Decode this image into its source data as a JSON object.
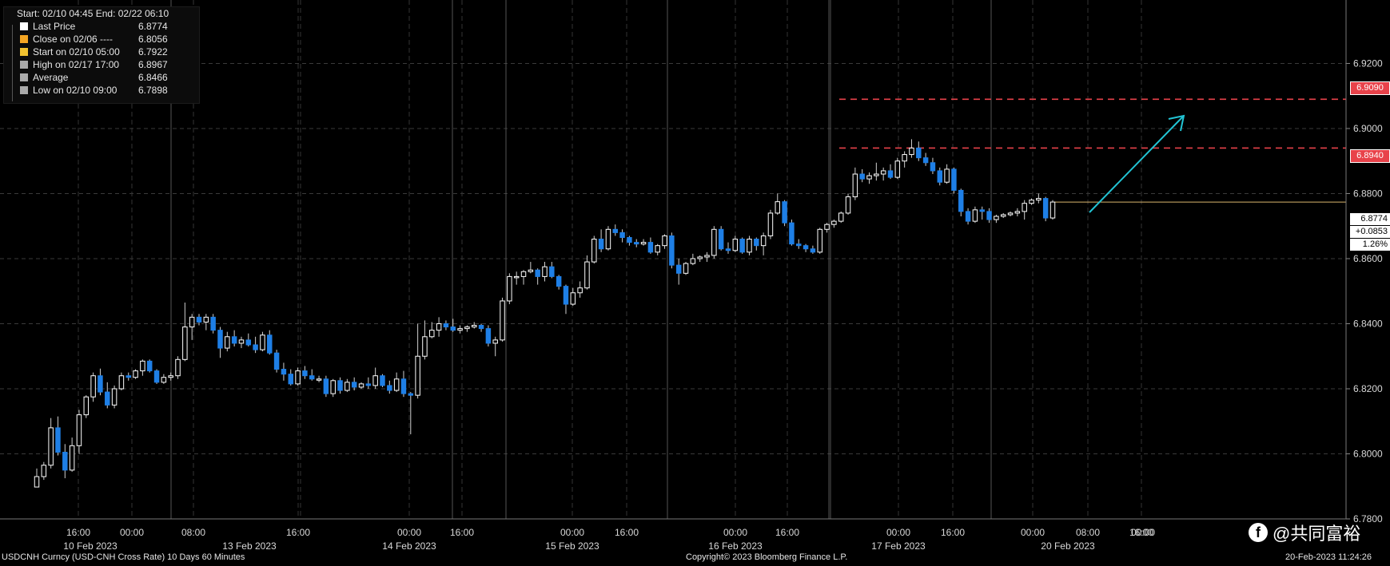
{
  "legend": {
    "header": "Start: 02/10 04:45 End: 02/22 06:10",
    "rows": [
      {
        "label": "Last Price",
        "value": "6.8774",
        "color": "#ffffff"
      },
      {
        "label": "Close on 02/06 ----",
        "value": "6.8056",
        "color": "#f5a623"
      },
      {
        "label": "Start on 02/10 05:00",
        "value": "6.7922",
        "color": "#f2c230"
      },
      {
        "label": "High on 02/17 17:00",
        "value": "6.8967",
        "color": "#aaaaaa"
      },
      {
        "label": "Average",
        "value": "6.8466",
        "color": "#aaaaaa"
      },
      {
        "label": "Low on 02/10 09:00",
        "value": "6.7898",
        "color": "#aaaaaa"
      }
    ]
  },
  "price_boxes": {
    "level_upper": "6.9090",
    "level_lower": "6.8940",
    "last_price": "6.8774",
    "change": "+0.0853",
    "change_pct": "1.26%"
  },
  "footer": {
    "left": "USDCNH Curncy (USD-CNH Cross Rate) 10 Days 60 Minutes",
    "center": "Copyright© 2023 Bloomberg Finance L.P.",
    "right": "20-Feb-2023 11:24:26"
  },
  "watermark": "@共同富裕",
  "colors": {
    "background": "#000000",
    "up_candle": "#ffffff",
    "down_candle": "#1e7fe6",
    "level_line": "#e8424a",
    "arrow": "#22c4d4",
    "last_line": "#d9b56e"
  },
  "chart_data": {
    "type": "candlestick",
    "y_axis": {
      "range": [
        6.78,
        6.9395
      ],
      "ticks": [
        6.78,
        6.8,
        6.82,
        6.84,
        6.86,
        6.88,
        6.9,
        6.92
      ],
      "tick_labels": [
        "6.7800",
        "6.8000",
        "6.8200",
        "6.8400",
        "6.8600",
        "6.8800",
        "6.9000",
        "6.9200"
      ]
    },
    "x_tick_labels": [
      "16:00",
      "00:00",
      "08:00",
      "16:00",
      "00:00",
      "16:00",
      "00:00",
      "16:00",
      "00:00",
      "16:00",
      "00:00",
      "16:00",
      "00:00",
      "08:00",
      "16:00",
      "00:00"
    ],
    "x_date_labels": [
      "10 Feb 2023",
      "13 Feb 2023",
      "14 Feb 2023",
      "15 Feb 2023",
      "16 Feb 2023",
      "17 Feb 2023",
      "20 Feb 2023"
    ],
    "horizontal_levels": [
      6.909,
      6.894
    ],
    "last_price_line": 6.8774,
    "candles": [
      [
        6.7898,
        6.7955,
        6.7898,
        6.793
      ],
      [
        6.793,
        6.7975,
        6.792,
        6.7965
      ],
      [
        6.7965,
        6.811,
        6.7955,
        6.808
      ],
      [
        6.808,
        6.8115,
        6.7995,
        6.8005
      ],
      [
        6.8005,
        6.803,
        6.7925,
        6.795
      ],
      [
        6.795,
        6.805,
        6.7945,
        6.8025
      ],
      [
        6.8025,
        6.8135,
        6.8,
        6.812
      ],
      [
        6.812,
        6.818,
        6.811,
        6.8175
      ],
      [
        6.8175,
        6.825,
        6.816,
        6.824
      ],
      [
        6.824,
        6.8262,
        6.818,
        6.819
      ],
      [
        6.819,
        6.822,
        6.814,
        6.815
      ],
      [
        6.815,
        6.821,
        6.814,
        6.82
      ],
      [
        6.82,
        6.825,
        6.8195,
        6.824
      ],
      [
        6.824,
        6.825,
        6.8225,
        6.8235
      ],
      [
        6.8235,
        6.826,
        6.823,
        6.8255
      ],
      [
        6.8255,
        6.829,
        6.824,
        6.8285
      ],
      [
        6.8285,
        6.829,
        6.825,
        6.8255
      ],
      [
        6.8255,
        6.826,
        6.8215,
        6.822
      ],
      [
        6.822,
        6.8245,
        6.8215,
        6.8235
      ],
      [
        6.8235,
        6.825,
        6.8225,
        6.824
      ],
      [
        6.824,
        6.83,
        6.823,
        6.829
      ],
      [
        6.829,
        6.8465,
        6.8285,
        6.839
      ],
      [
        6.839,
        6.843,
        6.835,
        6.842
      ],
      [
        6.842,
        6.843,
        6.8395,
        6.8405
      ],
      [
        6.8405,
        6.843,
        6.838,
        6.842
      ],
      [
        6.842,
        6.843,
        6.837,
        6.838
      ],
      [
        6.838,
        6.839,
        6.8295,
        6.8325
      ],
      [
        6.8325,
        6.8375,
        6.8315,
        6.836
      ],
      [
        6.836,
        6.838,
        6.833,
        6.834
      ],
      [
        6.834,
        6.836,
        6.8325,
        6.835
      ],
      [
        6.835,
        6.837,
        6.833,
        6.8335
      ],
      [
        6.8335,
        6.836,
        6.831,
        6.832
      ],
      [
        6.832,
        6.8375,
        6.8315,
        6.8365
      ],
      [
        6.8365,
        6.838,
        6.8305,
        6.831
      ],
      [
        6.831,
        6.832,
        6.825,
        6.826
      ],
      [
        6.826,
        6.828,
        6.8225,
        6.8245
      ],
      [
        6.8245,
        6.826,
        6.821,
        6.8215
      ],
      [
        6.8215,
        6.8265,
        6.821,
        6.8255
      ],
      [
        6.8255,
        6.827,
        6.823,
        6.824
      ],
      [
        6.824,
        6.826,
        6.8225,
        6.823
      ],
      [
        6.823,
        6.824,
        6.822,
        6.823
      ],
      [
        6.823,
        6.824,
        6.8175,
        6.8185
      ],
      [
        6.8185,
        6.823,
        6.8175,
        6.8225
      ],
      [
        6.8225,
        6.8235,
        6.8185,
        6.8195
      ],
      [
        6.8195,
        6.823,
        6.819,
        6.822
      ],
      [
        6.822,
        6.8235,
        6.8195,
        6.8205
      ],
      [
        6.8205,
        6.822,
        6.82,
        6.8215
      ],
      [
        6.8215,
        6.8235,
        6.82,
        6.821
      ],
      [
        6.821,
        6.8265,
        6.82,
        6.824
      ],
      [
        6.824,
        6.8245,
        6.8205,
        6.821
      ],
      [
        6.821,
        6.8225,
        6.8185,
        6.8195
      ],
      [
        6.8195,
        6.825,
        6.819,
        6.823
      ],
      [
        6.823,
        6.8255,
        6.8175,
        6.8185
      ],
      [
        6.8185,
        6.819,
        6.806,
        6.818
      ],
      [
        6.818,
        6.84,
        6.817,
        6.83
      ],
      [
        6.83,
        6.841,
        6.829,
        6.836
      ],
      [
        6.836,
        6.8405,
        6.8355,
        6.838
      ],
      [
        6.838,
        6.842,
        6.836,
        6.84
      ],
      [
        6.84,
        6.841,
        6.838,
        6.839
      ],
      [
        6.839,
        6.8415,
        6.8375,
        6.838
      ],
      [
        6.838,
        6.8395,
        6.837,
        6.8385
      ],
      [
        6.8385,
        6.8395,
        6.8375,
        6.839
      ],
      [
        6.839,
        6.8405,
        6.8385,
        6.8395
      ],
      [
        6.8395,
        6.84,
        6.8375,
        6.8385
      ],
      [
        6.8385,
        6.8395,
        6.833,
        6.834
      ],
      [
        6.834,
        6.836,
        6.83,
        6.835
      ],
      [
        6.835,
        6.848,
        6.8345,
        6.847
      ],
      [
        6.847,
        6.8555,
        6.846,
        6.8545
      ],
      [
        6.8545,
        6.856,
        6.852,
        6.8545
      ],
      [
        6.8545,
        6.8565,
        6.852,
        6.856
      ],
      [
        6.856,
        6.859,
        6.8555,
        6.8565
      ],
      [
        6.8565,
        6.857,
        6.852,
        6.8545
      ],
      [
        6.8545,
        6.859,
        6.853,
        6.8575
      ],
      [
        6.8575,
        6.859,
        6.854,
        6.8545
      ],
      [
        6.8545,
        6.855,
        6.8505,
        6.8515
      ],
      [
        6.8515,
        6.852,
        6.843,
        6.846
      ],
      [
        6.846,
        6.851,
        6.8455,
        6.8495
      ],
      [
        6.8495,
        6.853,
        6.848,
        6.851
      ],
      [
        6.851,
        6.861,
        6.8505,
        6.859
      ],
      [
        6.859,
        6.867,
        6.8585,
        6.866
      ],
      [
        6.866,
        6.869,
        6.862,
        6.863
      ],
      [
        6.863,
        6.87,
        6.8625,
        6.869
      ],
      [
        6.869,
        6.8705,
        6.867,
        6.868
      ],
      [
        6.868,
        6.869,
        6.865,
        6.8665
      ],
      [
        6.8665,
        6.867,
        6.864,
        6.865
      ],
      [
        6.865,
        6.866,
        6.8635,
        6.8645
      ],
      [
        6.8645,
        6.866,
        6.864,
        6.865
      ],
      [
        6.865,
        6.8665,
        6.8615,
        6.862
      ],
      [
        6.862,
        6.8645,
        6.861,
        6.864
      ],
      [
        6.864,
        6.8675,
        6.863,
        6.867
      ],
      [
        6.867,
        6.868,
        6.857,
        6.858
      ],
      [
        6.858,
        6.86,
        6.852,
        6.8555
      ],
      [
        6.8555,
        6.859,
        6.855,
        6.8585
      ],
      [
        6.8585,
        6.8615,
        6.858,
        6.86
      ],
      [
        6.86,
        6.861,
        6.859,
        6.8605
      ],
      [
        6.8605,
        6.862,
        6.859,
        6.861
      ],
      [
        6.861,
        6.87,
        6.86,
        6.869
      ],
      [
        6.869,
        6.87,
        6.8625,
        6.863
      ],
      [
        6.863,
        6.865,
        6.8615,
        6.8625
      ],
      [
        6.8625,
        6.867,
        6.862,
        6.866
      ],
      [
        6.866,
        6.8665,
        6.8615,
        6.862
      ],
      [
        6.862,
        6.867,
        6.861,
        6.866
      ],
      [
        6.866,
        6.8665,
        6.8625,
        6.864
      ],
      [
        6.864,
        6.868,
        6.861,
        6.867
      ],
      [
        6.867,
        6.875,
        6.866,
        6.874
      ],
      [
        6.874,
        6.88,
        6.8735,
        6.8775
      ],
      [
        6.8775,
        6.878,
        6.87,
        6.871
      ],
      [
        6.871,
        6.872,
        6.864,
        6.8645
      ],
      [
        6.8645,
        6.866,
        6.863,
        6.864
      ],
      [
        6.864,
        6.8645,
        6.862,
        6.863
      ],
      [
        6.863,
        6.864,
        6.8615,
        6.862
      ],
      [
        6.862,
        6.8695,
        6.8615,
        6.869
      ],
      [
        6.869,
        6.871,
        6.868,
        6.8705
      ],
      [
        6.8705,
        6.872,
        6.8695,
        6.8715
      ],
      [
        6.8715,
        6.8745,
        6.871,
        6.874
      ],
      [
        6.874,
        6.88,
        6.8735,
        6.879
      ],
      [
        6.879,
        6.888,
        6.878,
        6.886
      ],
      [
        6.886,
        6.8875,
        6.8835,
        6.8845
      ],
      [
        6.8845,
        6.8865,
        6.883,
        6.8855
      ],
      [
        6.8855,
        6.8895,
        6.884,
        6.886
      ],
      [
        6.886,
        6.888,
        6.884,
        6.887
      ],
      [
        6.887,
        6.889,
        6.8845,
        6.885
      ],
      [
        6.885,
        6.891,
        6.8845,
        6.89
      ],
      [
        6.89,
        6.893,
        6.888,
        6.892
      ],
      [
        6.892,
        6.8967,
        6.891,
        6.894
      ],
      [
        6.894,
        6.896,
        6.89,
        6.891
      ],
      [
        6.891,
        6.8925,
        6.8885,
        6.8895
      ],
      [
        6.8895,
        6.891,
        6.886,
        6.887
      ],
      [
        6.887,
        6.888,
        6.8825,
        6.8835
      ],
      [
        6.8835,
        6.889,
        6.883,
        6.8875
      ],
      [
        6.8875,
        6.888,
        6.88,
        6.881
      ],
      [
        6.881,
        6.8815,
        6.873,
        6.8745
      ],
      [
        6.8745,
        6.8755,
        6.8705,
        6.8715
      ],
      [
        6.8715,
        6.876,
        6.871,
        6.875
      ],
      [
        6.875,
        6.876,
        6.872,
        6.8745
      ],
      [
        6.8745,
        6.8755,
        6.871,
        6.872
      ],
      [
        6.872,
        6.8735,
        6.871,
        6.873
      ],
      [
        6.873,
        6.874,
        6.8725,
        6.8735
      ],
      [
        6.8735,
        6.8745,
        6.873,
        6.874
      ],
      [
        6.874,
        6.8755,
        6.873,
        6.8745
      ],
      [
        6.8745,
        6.878,
        6.872,
        6.877
      ],
      [
        6.877,
        6.8785,
        6.8765,
        6.878
      ],
      [
        6.878,
        6.88,
        6.877,
        6.8785
      ],
      [
        6.8785,
        6.879,
        6.8715,
        6.8725
      ],
      [
        6.8725,
        6.878,
        6.872,
        6.8774
      ]
    ]
  }
}
